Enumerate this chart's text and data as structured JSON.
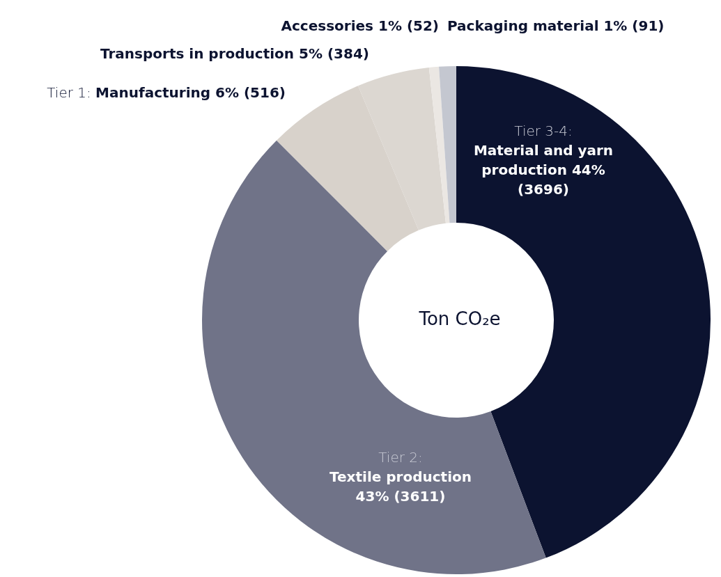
{
  "chart_data": {
    "type": "donut",
    "title": "Ton CO₂e",
    "categories": [
      "Tier 3-4: Material and yarn production",
      "Tier 2: Textile production",
      "Tier 1: Manufacturing",
      "Transports in production",
      "Accessories",
      "Packaging material"
    ],
    "values": [
      3696,
      3611,
      516,
      384,
      52,
      91
    ],
    "value_labels": [
      "44% (3696)",
      "43% (3611)",
      "6% (516)",
      "5% (384)",
      "1% (52)",
      "1% (91)"
    ],
    "colors": [
      "#0c1330",
      "#707388",
      "#d8d2cb",
      "#dcd7d1",
      "#ebe7e3",
      "#c4c7d0"
    ]
  }
}
